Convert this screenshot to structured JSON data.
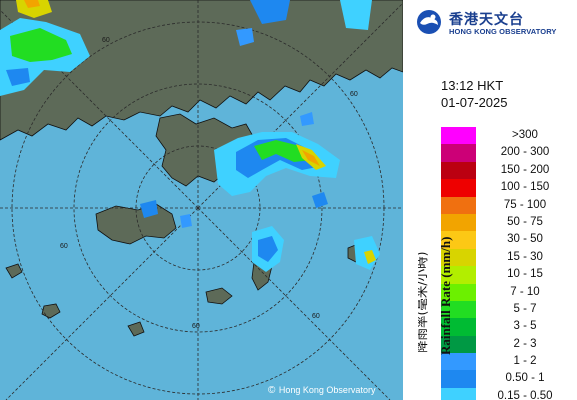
{
  "map": {
    "copyright": "Hong Kong Observatory",
    "copyright_symbol": "©",
    "grid_ring_labels": [
      "60",
      "60",
      "60",
      "60",
      "60"
    ],
    "colors": {
      "sea": "#5fb4d9",
      "land": "#5d6a58",
      "grid": "#2a2a2a"
    }
  },
  "logo": {
    "name_chinese": "香港天文台",
    "name_english": "HONG KONG OBSERVATORY",
    "icon": "hko-emblem-icon"
  },
  "timestamp": {
    "time": "13:12 HKT",
    "date": "01-07-2025"
  },
  "legend": {
    "title_english": "Rainfall Rate (mm/h)",
    "title_chinese": "降雨率(毫米/小時)",
    "ranges": [
      {
        "label": ">300",
        "color": "#ff00ff"
      },
      {
        "label": "200 - 300",
        "color": "#cc0077"
      },
      {
        "label": "150 - 200",
        "color": "#bb0011"
      },
      {
        "label": "100 - 150",
        "color": "#ee0000"
      },
      {
        "label": "75 - 100",
        "color": "#f07010"
      },
      {
        "label": "50 - 75",
        "color": "#f2a400"
      },
      {
        "label": "30 - 50",
        "color": "#fcc815"
      },
      {
        "label": "15 - 30",
        "color": "#d8d400"
      },
      {
        "label": "10 - 15",
        "color": "#b2ee00"
      },
      {
        "label": "7 - 10",
        "color": "#6cf000"
      },
      {
        "label": "5 - 7",
        "color": "#22dd22"
      },
      {
        "label": "3 - 5",
        "color": "#00bb33"
      },
      {
        "label": "2 - 3",
        "color": "#009944"
      },
      {
        "label": "1 - 2",
        "color": "#3399ff"
      },
      {
        "label": "0.50 - 1",
        "color": "#1e88f0"
      },
      {
        "label": "0.15 - 0.50",
        "color": "#3fd1ff"
      }
    ]
  }
}
